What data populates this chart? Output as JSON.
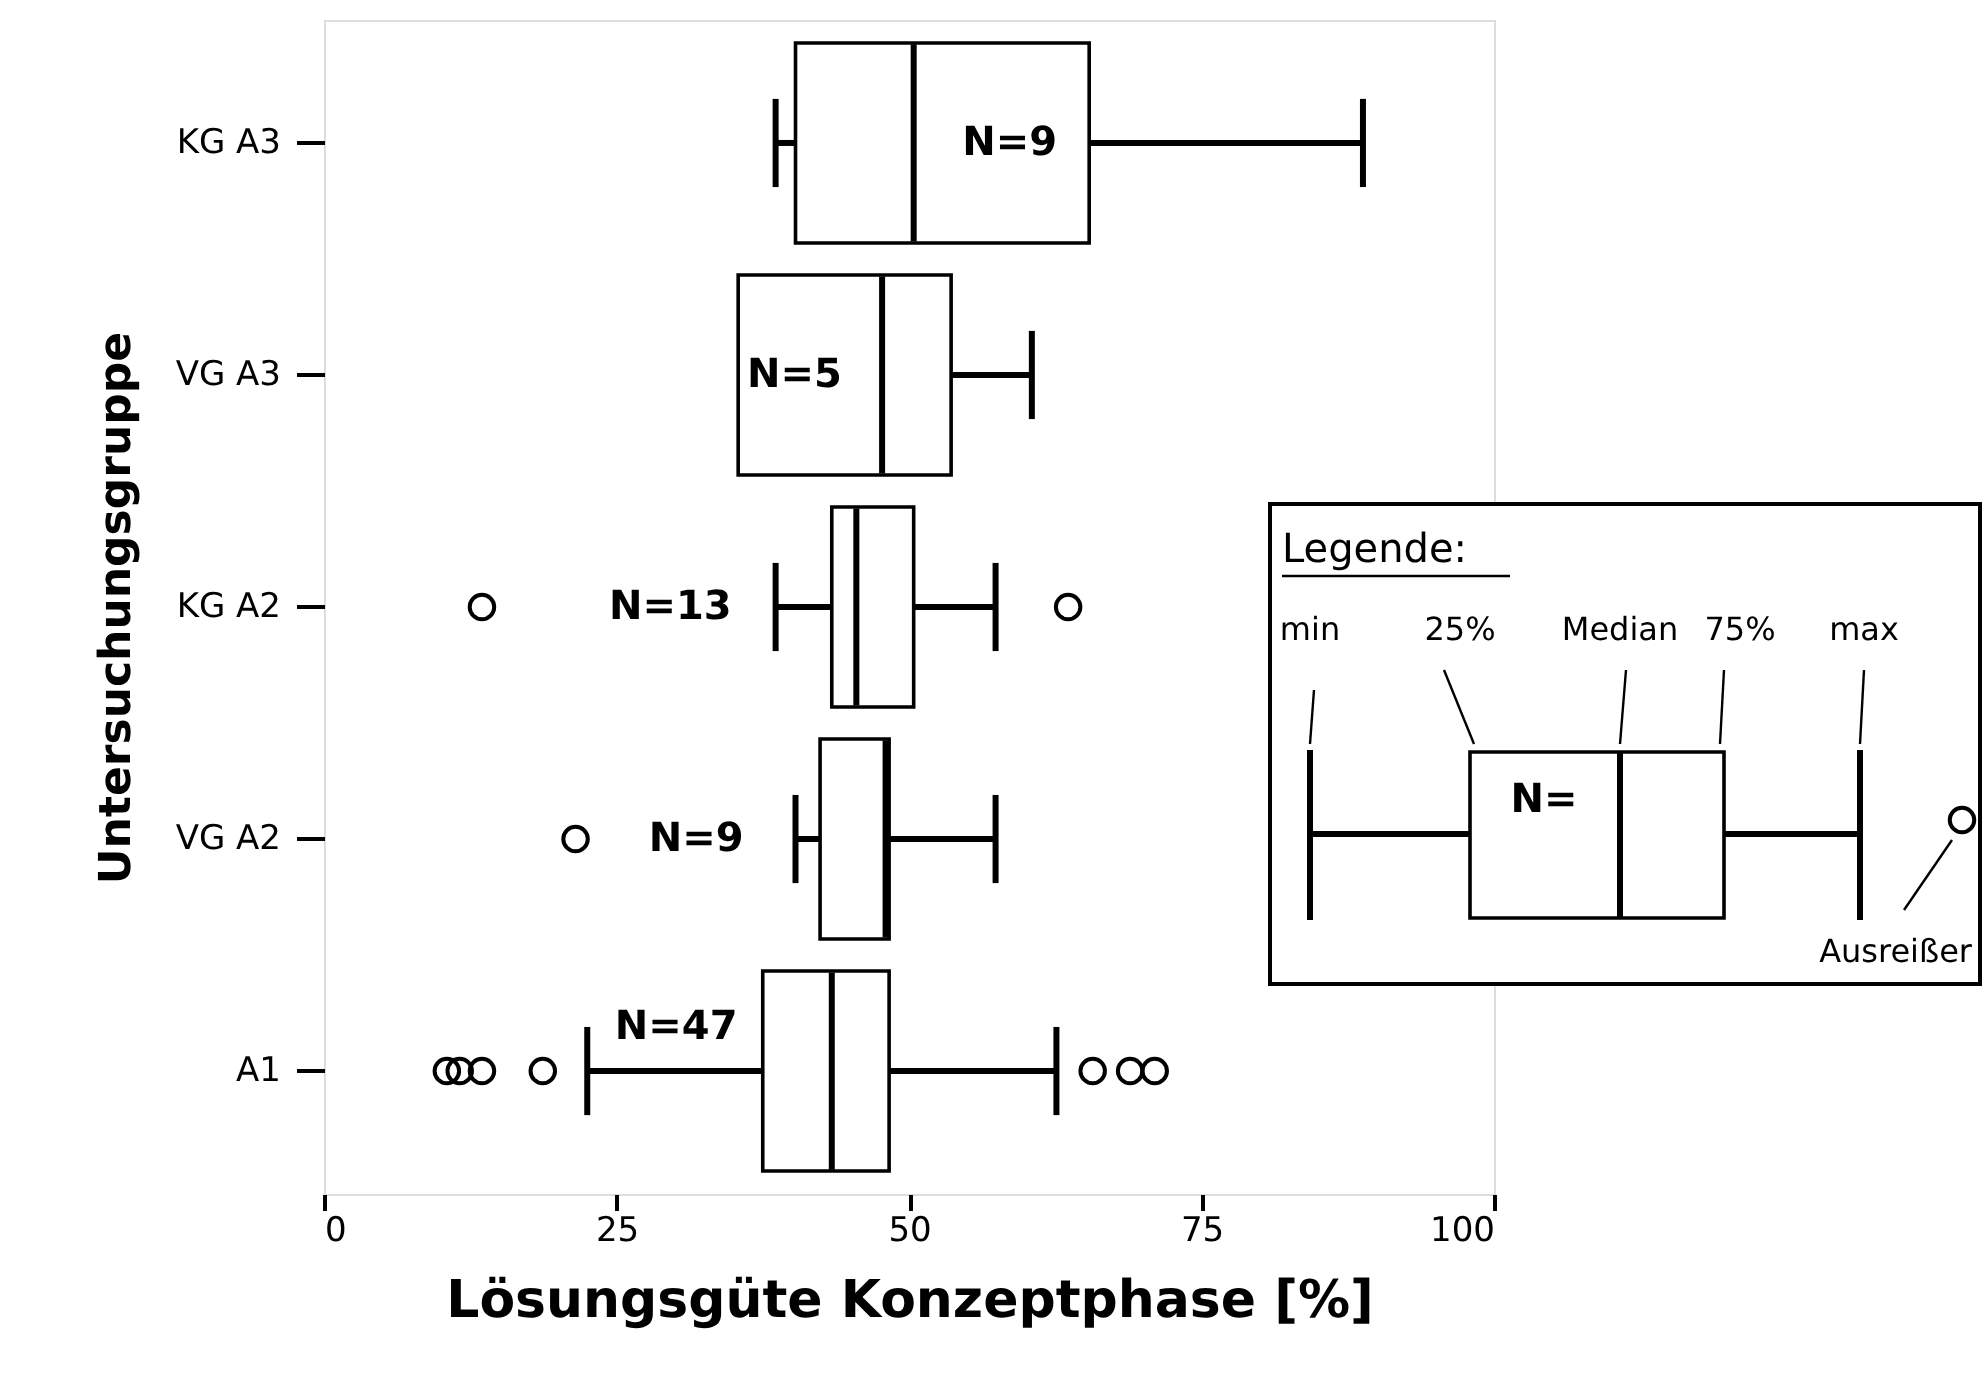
{
  "chart_data": {
    "type": "box",
    "orientation": "horizontal",
    "xlabel": "Lösungsgüte Konzeptphase [%]",
    "ylabel": "Untersuchungsgruppe",
    "categories": [
      "KG A3",
      "VG A3",
      "KG A2",
      "VG A2",
      "A1"
    ],
    "boxes": [
      {
        "low": 38.6,
        "q1": 40.3,
        "median": 50.4,
        "q3": 65.4,
        "high": 88.8
      },
      {
        "low": 35.4,
        "q1": 35.4,
        "median": 47.7,
        "q3": 53.6,
        "high": 60.5
      },
      {
        "low": 38.6,
        "q1": 43.4,
        "median": 45.5,
        "q3": 50.4,
        "high": 57.4,
        "outliers": [
          13.5,
          63.6
        ]
      },
      {
        "low": 40.3,
        "q1": 42.4,
        "median": 48.0,
        "q3": 48.3,
        "high": 57.4,
        "outliers": [
          21.5
        ]
      },
      {
        "low": 22.5,
        "q1": 37.5,
        "median": 43.4,
        "q3": 48.3,
        "high": 62.6,
        "outliers": [
          10.5,
          11.6,
          13.5,
          18.7,
          65.7,
          68.9,
          71.0
        ]
      }
    ],
    "color": "#000000",
    "xlim": [
      0,
      100
    ],
    "xticks": [
      0,
      25,
      50,
      75,
      100
    ],
    "grid": false,
    "annotations": [
      "N=9",
      "N=5",
      "N=13",
      "N=9",
      "N=47",
      "Legende:",
      "min",
      "25%",
      "Median",
      "75%",
      "max",
      "N=",
      "Ausreißer"
    ]
  }
}
